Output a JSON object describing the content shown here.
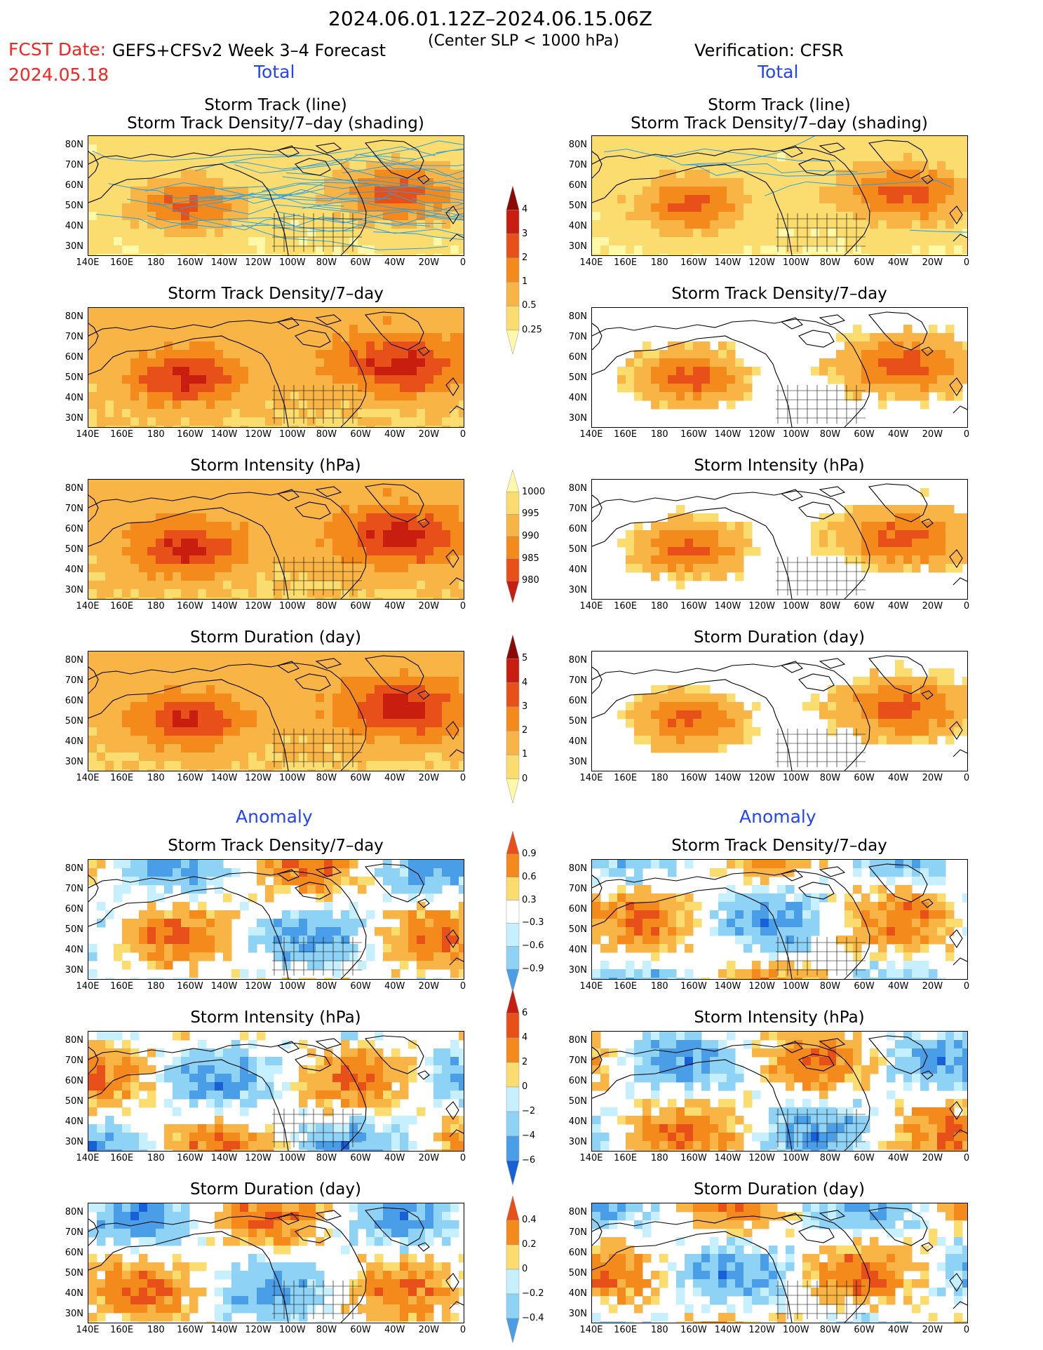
{
  "header": {
    "date_range": "2024.06.01.12Z–2024.06.15.06Z",
    "fcst_label": "FCST Date:",
    "fcst_date": "2024.05.18",
    "model": "GEFS+CFSv2 Week 3–4 Forecast",
    "criterion": "(Center SLP < 1000 hPa)",
    "verification": "Verification: CFSR"
  },
  "sections": {
    "total_left": "Total",
    "total_right": "Total",
    "anomaly_left": "Anomaly",
    "anomaly_right": "Anomaly"
  },
  "panel_titles": {
    "track_line": "Storm Track (line)",
    "track_shading": "Storm Track Density/7–day (shading)",
    "density": "Storm Track Density/7–day",
    "intensity": "Storm Intensity (hPa)",
    "duration": "Storm Duration (day)"
  },
  "axes": {
    "lat_ticks": [
      "80N",
      "70N",
      "60N",
      "50N",
      "40N",
      "30N"
    ],
    "lon_ticks": [
      "140E",
      "160E",
      "180",
      "160W",
      "140W",
      "120W",
      "100W",
      "80W",
      "60W",
      "40W",
      "20W",
      "0"
    ]
  },
  "colorbars": {
    "density_total": [
      "4",
      "3",
      "2",
      "1",
      "0.5",
      "0.25"
    ],
    "intensity_total": [
      "1000",
      "995",
      "990",
      "985",
      "980"
    ],
    "duration_total": [
      "5",
      "4",
      "3",
      "2",
      "1",
      "0"
    ],
    "density_anom": [
      "0.9",
      "0.6",
      "0.3",
      "−0.3",
      "−0.6",
      "−0.9"
    ],
    "intensity_anom": [
      "6",
      "4",
      "2",
      "0",
      "−2",
      "−4",
      "−6"
    ],
    "duration_anom": [
      "0.4",
      "0.2",
      "0",
      "−0.2",
      "−0.4"
    ]
  },
  "colors": {
    "warm": [
      "#fff8a8",
      "#fbdc6e",
      "#f9b446",
      "#f48a1c",
      "#e8501a",
      "#c81e10",
      "#8c0a06"
    ],
    "cool": [
      "#c6f0ff",
      "#8ed2f5",
      "#4a9ee8",
      "#1860d8"
    ],
    "track_line": "#2aa0e0"
  },
  "chart_data": {
    "type": "heatmap",
    "layout": "7 rows x 2 columns of map panels (left: GEFS+CFSv2 forecast, right: CFSR verification)",
    "domain": {
      "lon_range": [
        "140E",
        "0"
      ],
      "lat_range": [
        "~25N",
        "~85N"
      ]
    },
    "panels": [
      {
        "row": 1,
        "left": "Storm Track (line) + Storm Track Density/7-day (shading)",
        "right": "Storm Track (line) + Storm Track Density/7-day (shading)",
        "units": "per 7 days"
      },
      {
        "row": 2,
        "left": "Storm Track Density/7-day",
        "right": "Storm Track Density/7-day",
        "units": "per 7 days"
      },
      {
        "row": 3,
        "left": "Storm Intensity",
        "right": "Storm Intensity",
        "units": "hPa"
      },
      {
        "row": 4,
        "left": "Storm Duration",
        "right": "Storm Duration",
        "units": "day"
      },
      {
        "row": 5,
        "left": "Storm Track Density/7-day anomaly",
        "right": "Storm Track Density/7-day anomaly",
        "units": "per 7 days"
      },
      {
        "row": 6,
        "left": "Storm Intensity anomaly",
        "right": "Storm Intensity anomaly",
        "units": "hPa"
      },
      {
        "row": 7,
        "left": "Storm Duration anomaly",
        "right": "Storm Duration anomaly",
        "units": "day"
      }
    ]
  }
}
